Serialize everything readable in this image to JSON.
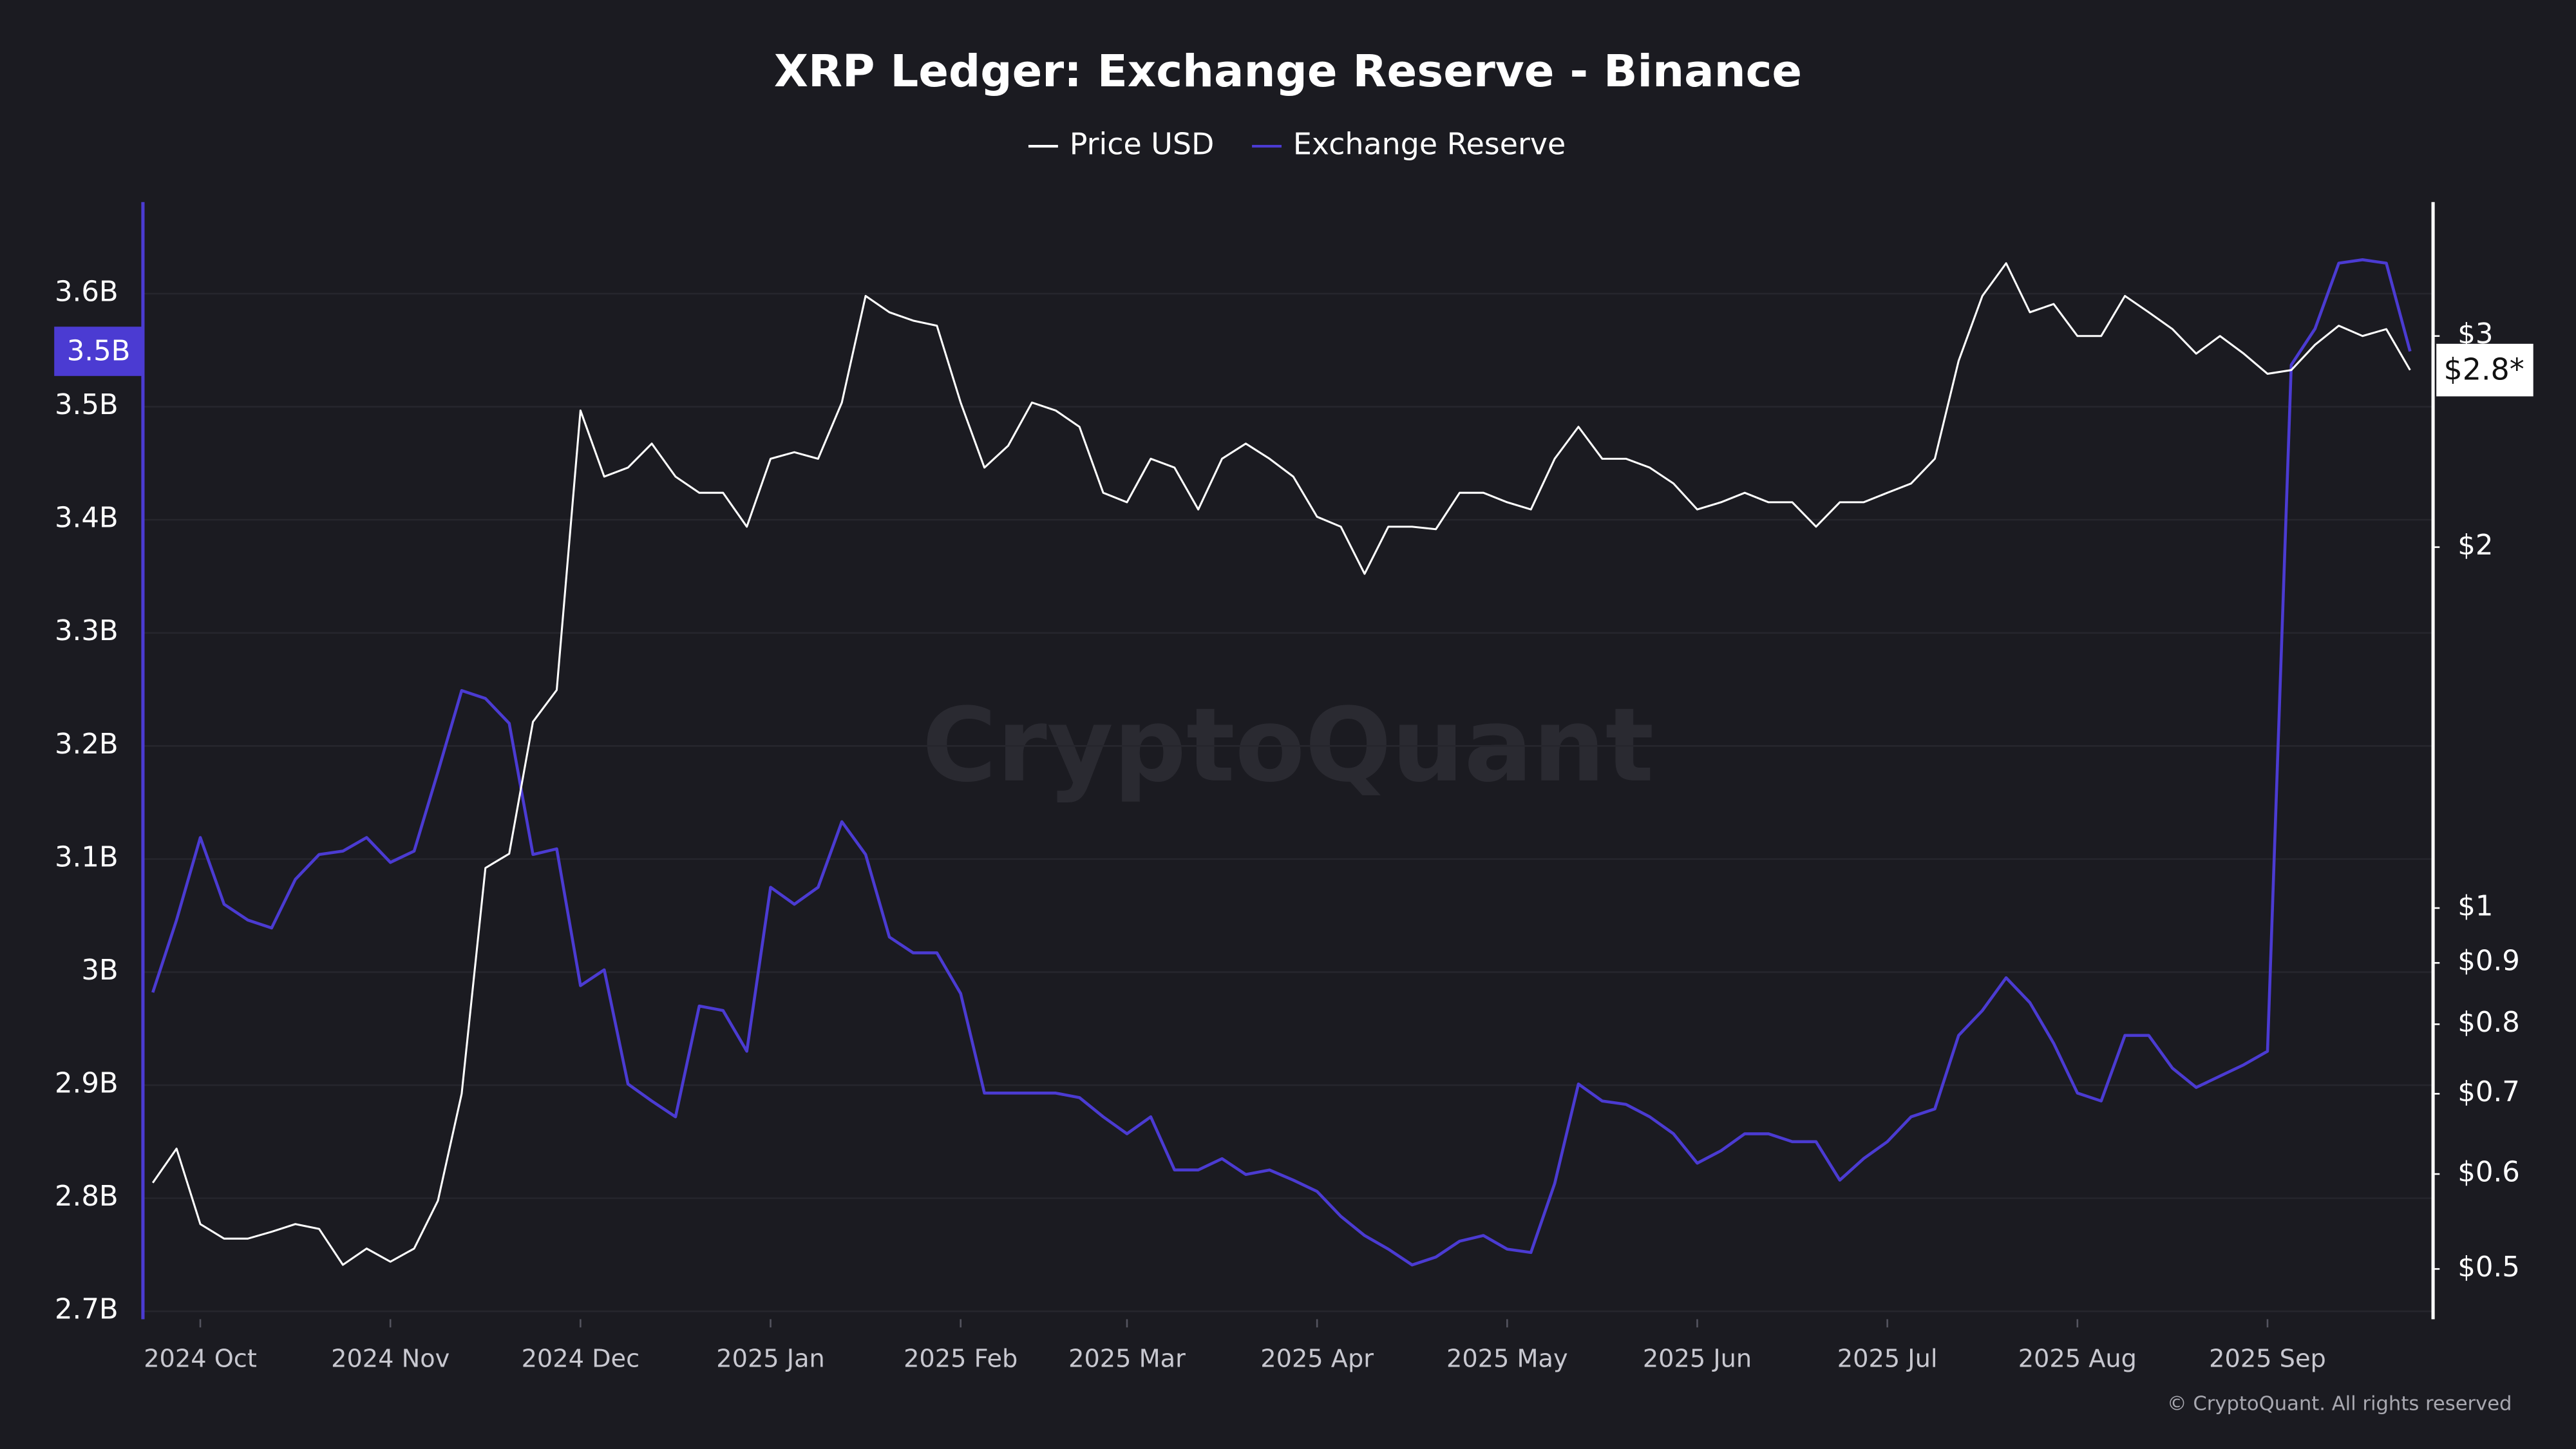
{
  "chart_data": {
    "type": "line",
    "title": "XRP Ledger: Exchange Reserve - Binance",
    "watermark": "CryptoQuant",
    "credit": "© CryptoQuant. All rights reserved",
    "categories": [
      null,
      null,
      "2024 Oct",
      null,
      null,
      null,
      null,
      null,
      null,
      null,
      "2024 Nov",
      null,
      null,
      null,
      null,
      null,
      null,
      null,
      "2024 Dec",
      null,
      null,
      null,
      null,
      null,
      null,
      null,
      "2025 Jan",
      null,
      null,
      null,
      null,
      null,
      null,
      null,
      "2025 Feb",
      null,
      null,
      null,
      null,
      null,
      null,
      "2025 Mar",
      null,
      null,
      null,
      null,
      null,
      null,
      null,
      "2025 Apr",
      null,
      null,
      null,
      null,
      null,
      null,
      null,
      "2025 May",
      null,
      null,
      null,
      null,
      null,
      null,
      null,
      "2025 Jun",
      null,
      null,
      null,
      null,
      null,
      null,
      null,
      "2025 Jul",
      null,
      null,
      null,
      null,
      null,
      null,
      null,
      "2025 Aug",
      null,
      null,
      null,
      null,
      null,
      null,
      null,
      "2025 Sep",
      null,
      null,
      null,
      null,
      null,
      null
    ],
    "series": [
      {
        "name": "Price USD",
        "color": "#ffffff",
        "axis": "y2",
        "last_label": "$2.8*",
        "values": [
          0.59,
          0.63,
          0.545,
          0.53,
          0.53,
          0.537,
          0.545,
          0.54,
          0.504,
          0.52,
          0.507,
          0.52,
          0.57,
          0.7,
          1.08,
          1.11,
          1.43,
          1.52,
          2.6,
          2.29,
          2.33,
          2.44,
          2.29,
          2.22,
          2.22,
          2.08,
          2.37,
          2.4,
          2.37,
          2.64,
          3.24,
          3.14,
          3.09,
          3.06,
          2.64,
          2.33,
          2.43,
          2.64,
          2.6,
          2.52,
          2.22,
          2.18,
          2.37,
          2.33,
          2.15,
          2.37,
          2.44,
          2.37,
          2.29,
          2.12,
          2.08,
          1.9,
          2.08,
          2.08,
          2.07,
          2.22,
          2.22,
          2.18,
          2.15,
          2.37,
          2.52,
          2.37,
          2.37,
          2.33,
          2.26,
          2.15,
          2.18,
          2.22,
          2.18,
          2.18,
          2.08,
          2.18,
          2.18,
          2.22,
          2.26,
          2.37,
          2.86,
          3.24,
          3.45,
          3.14,
          3.19,
          3.0,
          3.0,
          3.24,
          3.14,
          3.04,
          2.9,
          3.0,
          2.9,
          2.79,
          2.81,
          2.95,
          3.06,
          3.0,
          3.04,
          2.81
        ]
      },
      {
        "name": "Exchange Reserve",
        "color": "#4b3bd2",
        "axis": "y",
        "last_label": "3.5B",
        "values": [
          2.982,
          3.046,
          3.119,
          3.06,
          3.046,
          3.039,
          3.082,
          3.104,
          3.107,
          3.119,
          3.097,
          3.107,
          3.177,
          3.249,
          3.242,
          3.22,
          3.104,
          3.109,
          2.988,
          3.002,
          2.901,
          2.886,
          2.872,
          2.97,
          2.966,
          2.93,
          3.075,
          3.06,
          3.075,
          3.133,
          3.104,
          3.031,
          3.017,
          3.017,
          2.981,
          2.893,
          2.893,
          2.893,
          2.893,
          2.889,
          2.872,
          2.857,
          2.872,
          2.825,
          2.825,
          2.835,
          2.821,
          2.825,
          2.816,
          2.806,
          2.784,
          2.767,
          2.755,
          2.741,
          2.748,
          2.762,
          2.767,
          2.755,
          2.752,
          2.813,
          2.901,
          2.886,
          2.883,
          2.872,
          2.857,
          2.831,
          2.842,
          2.857,
          2.857,
          2.85,
          2.85,
          2.816,
          2.835,
          2.85,
          2.872,
          2.879,
          2.944,
          2.966,
          2.995,
          2.973,
          2.937,
          2.893,
          2.886,
          2.944,
          2.944,
          2.915,
          2.898,
          2.908,
          2.918,
          2.93,
          3.537,
          3.569,
          3.627,
          3.63,
          3.627,
          3.549
        ]
      }
    ],
    "ylim": [
      2.693,
      3.681
    ],
    "yticks": [
      {
        "value": 2.7,
        "label": "2.7B"
      },
      {
        "value": 2.8,
        "label": "2.8B"
      },
      {
        "value": 2.9,
        "label": "2.9B"
      },
      {
        "value": 3.0,
        "label": "3B"
      },
      {
        "value": 3.1,
        "label": "3.1B"
      },
      {
        "value": 3.2,
        "label": "3.2B"
      },
      {
        "value": 3.3,
        "label": "3.3B"
      },
      {
        "value": 3.4,
        "label": "3.4B"
      },
      {
        "value": 3.5,
        "label": "3.5B"
      },
      {
        "value": 3.6,
        "label": "3.6B"
      }
    ],
    "y2lim": [
      0.454,
      3.88
    ],
    "y2log": true,
    "y2ticks": [
      {
        "value": 0.5,
        "label": "$0.5"
      },
      {
        "value": 0.6,
        "label": "$0.6"
      },
      {
        "value": 0.7,
        "label": "$0.7"
      },
      {
        "value": 0.8,
        "label": "$0.8"
      },
      {
        "value": 0.9,
        "label": "$0.9"
      },
      {
        "value": 1,
        "label": "$1"
      },
      {
        "value": 2,
        "label": "$2"
      },
      {
        "value": 3,
        "label": "$3"
      }
    ],
    "grid": true
  }
}
